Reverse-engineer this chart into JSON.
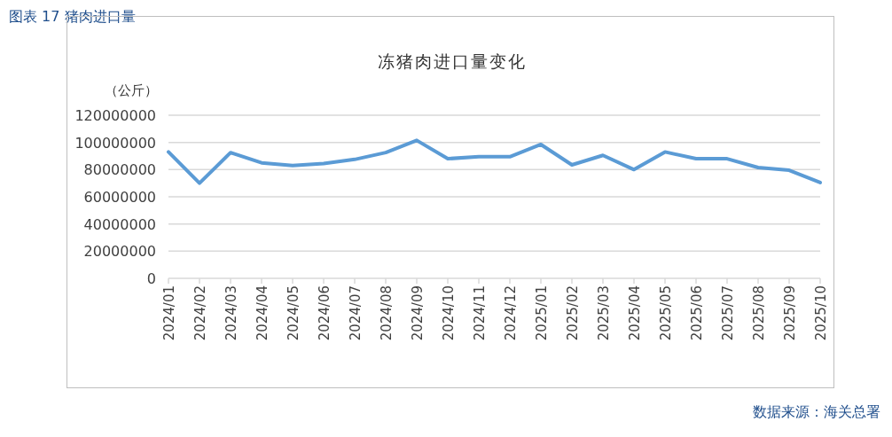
{
  "chart_data": {
    "type": "line",
    "title": "图表 17 猪肉进口量",
    "subtitle": "冻猪肉进口量变化",
    "ylabel": "（公斤）",
    "categories": [
      "2024/01",
      "2024/02",
      "2024/03",
      "2024/04",
      "2024/05",
      "2024/06",
      "2024/07",
      "2024/08",
      "2024/09",
      "2024/10",
      "2024/11",
      "2024/12",
      "2025/01",
      "2025/02",
      "2025/03",
      "2025/04",
      "2025/05",
      "2025/06",
      "2025/07",
      "2025/08",
      "2025/09",
      "2025/10"
    ],
    "series": [
      {
        "color": "#5b9bd5",
        "values": [
          93000000,
          70000000,
          92500000,
          85000000,
          83000000,
          84500000,
          87500000,
          92500000,
          101500000,
          88000000,
          89500000,
          89500000,
          98500000,
          83500000,
          90500000,
          80000000,
          93000000,
          88000000,
          88000000,
          81500000,
          79500000,
          70500000
        ]
      }
    ],
    "ylim": [
      0,
      120000000
    ],
    "yticks": [
      0,
      20000000,
      40000000,
      60000000,
      80000000,
      100000000,
      120000000
    ],
    "grid": "y",
    "marker": "none",
    "line_style": "solid",
    "annotations": [
      "数据来源：海关总署"
    ]
  }
}
